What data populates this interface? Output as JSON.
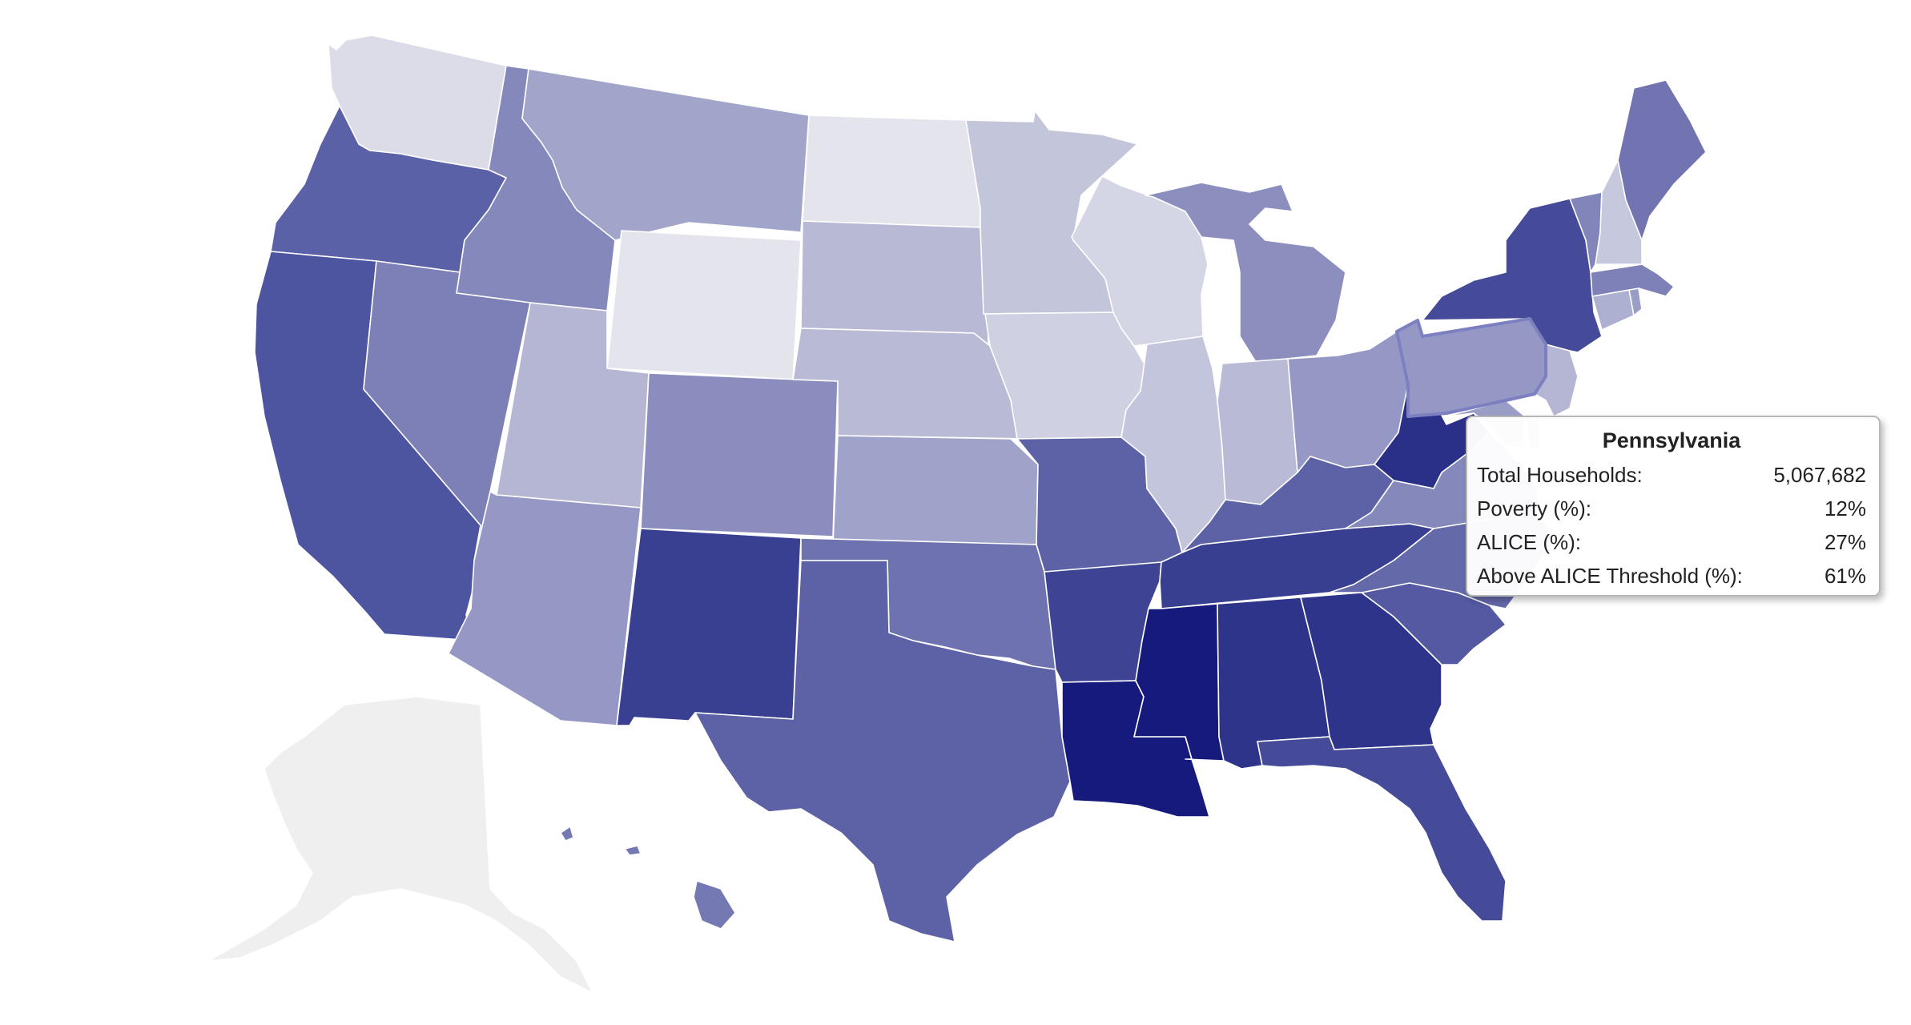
{
  "colors": {
    "background": "#ffffff",
    "state_border": "#ffffff",
    "hover_border": "#7d80c0",
    "no_data": "#efefef"
  },
  "tooltip": {
    "state": "Pennsylvania",
    "rows": [
      {
        "label": "Total Households:",
        "value": "5,067,682"
      },
      {
        "label": "Poverty (%):",
        "value": "12%"
      },
      {
        "label": "ALICE (%):",
        "value": "27%"
      },
      {
        "label": "Above ALICE Threshold (%):",
        "value": "61%"
      }
    ]
  },
  "states": [
    {
      "name": "Washington",
      "fill": "#dcdce8"
    },
    {
      "name": "Oregon",
      "fill": "#5b61a6"
    },
    {
      "name": "California",
      "fill": "#4e55a0"
    },
    {
      "name": "Idaho",
      "fill": "#8488bb"
    },
    {
      "name": "Nevada",
      "fill": "#7c80b6"
    },
    {
      "name": "Montana",
      "fill": "#a2a5ca"
    },
    {
      "name": "Wyoming",
      "fill": "#e4e5ec"
    },
    {
      "name": "Utah",
      "fill": "#b4b6d4"
    },
    {
      "name": "Arizona",
      "fill": "#9598c4"
    },
    {
      "name": "Colorado",
      "fill": "#8a8dbd"
    },
    {
      "name": "New Mexico",
      "fill": "#3a4091"
    },
    {
      "name": "North Dakota",
      "fill": "#e4e5ec"
    },
    {
      "name": "South Dakota",
      "fill": "#b7b9d5"
    },
    {
      "name": "Nebraska",
      "fill": "#b9bbd6"
    },
    {
      "name": "Kansas",
      "fill": "#a0a3c9"
    },
    {
      "name": "Oklahoma",
      "fill": "#6e73b0"
    },
    {
      "name": "Texas",
      "fill": "#5d62a6"
    },
    {
      "name": "Minnesota",
      "fill": "#c3c5db"
    },
    {
      "name": "Iowa",
      "fill": "#cfd0e2"
    },
    {
      "name": "Missouri",
      "fill": "#5d62a6"
    },
    {
      "name": "Arkansas",
      "fill": "#3e4493"
    },
    {
      "name": "Louisiana",
      "fill": "#161a7c"
    },
    {
      "name": "Wisconsin",
      "fill": "#d5d6e5"
    },
    {
      "name": "Illinois",
      "fill": "#c3c5dc"
    },
    {
      "name": "Michigan",
      "fill": "#8c8fbe"
    },
    {
      "name": "Indiana",
      "fill": "#b9bbd6"
    },
    {
      "name": "Ohio",
      "fill": "#9598c4"
    },
    {
      "name": "Kentucky",
      "fill": "#5d62a6"
    },
    {
      "name": "Tennessee",
      "fill": "#393f90"
    },
    {
      "name": "Mississippi",
      "fill": "#161a7c"
    },
    {
      "name": "Alabama",
      "fill": "#2e3489"
    },
    {
      "name": "Georgia",
      "fill": "#2e3489"
    },
    {
      "name": "Florida",
      "fill": "#454b99"
    },
    {
      "name": "South Carolina",
      "fill": "#5459a1"
    },
    {
      "name": "North Carolina",
      "fill": "#6469a9"
    },
    {
      "name": "Virginia",
      "fill": "#8488bb"
    },
    {
      "name": "West Virginia",
      "fill": "#2a3087"
    },
    {
      "name": "Maryland",
      "fill": "#9a9dc6"
    },
    {
      "name": "Delaware",
      "fill": "#9a9dc6"
    },
    {
      "name": "Pennsylvania",
      "fill": "#9598c4"
    },
    {
      "name": "New Jersey",
      "fill": "#b4b6d4"
    },
    {
      "name": "New York",
      "fill": "#454b99"
    },
    {
      "name": "Connecticut",
      "fill": "#aeb0d1"
    },
    {
      "name": "Rhode Island",
      "fill": "#9a9dc6"
    },
    {
      "name": "Massachusetts",
      "fill": "#7d81b7"
    },
    {
      "name": "Vermont",
      "fill": "#8285ba"
    },
    {
      "name": "New Hampshire",
      "fill": "#c6c8de"
    },
    {
      "name": "Maine",
      "fill": "#7174b0"
    },
    {
      "name": "Alaska",
      "fill": "#efefef"
    },
    {
      "name": "Hawaii",
      "fill": "#7479b3"
    }
  ]
}
